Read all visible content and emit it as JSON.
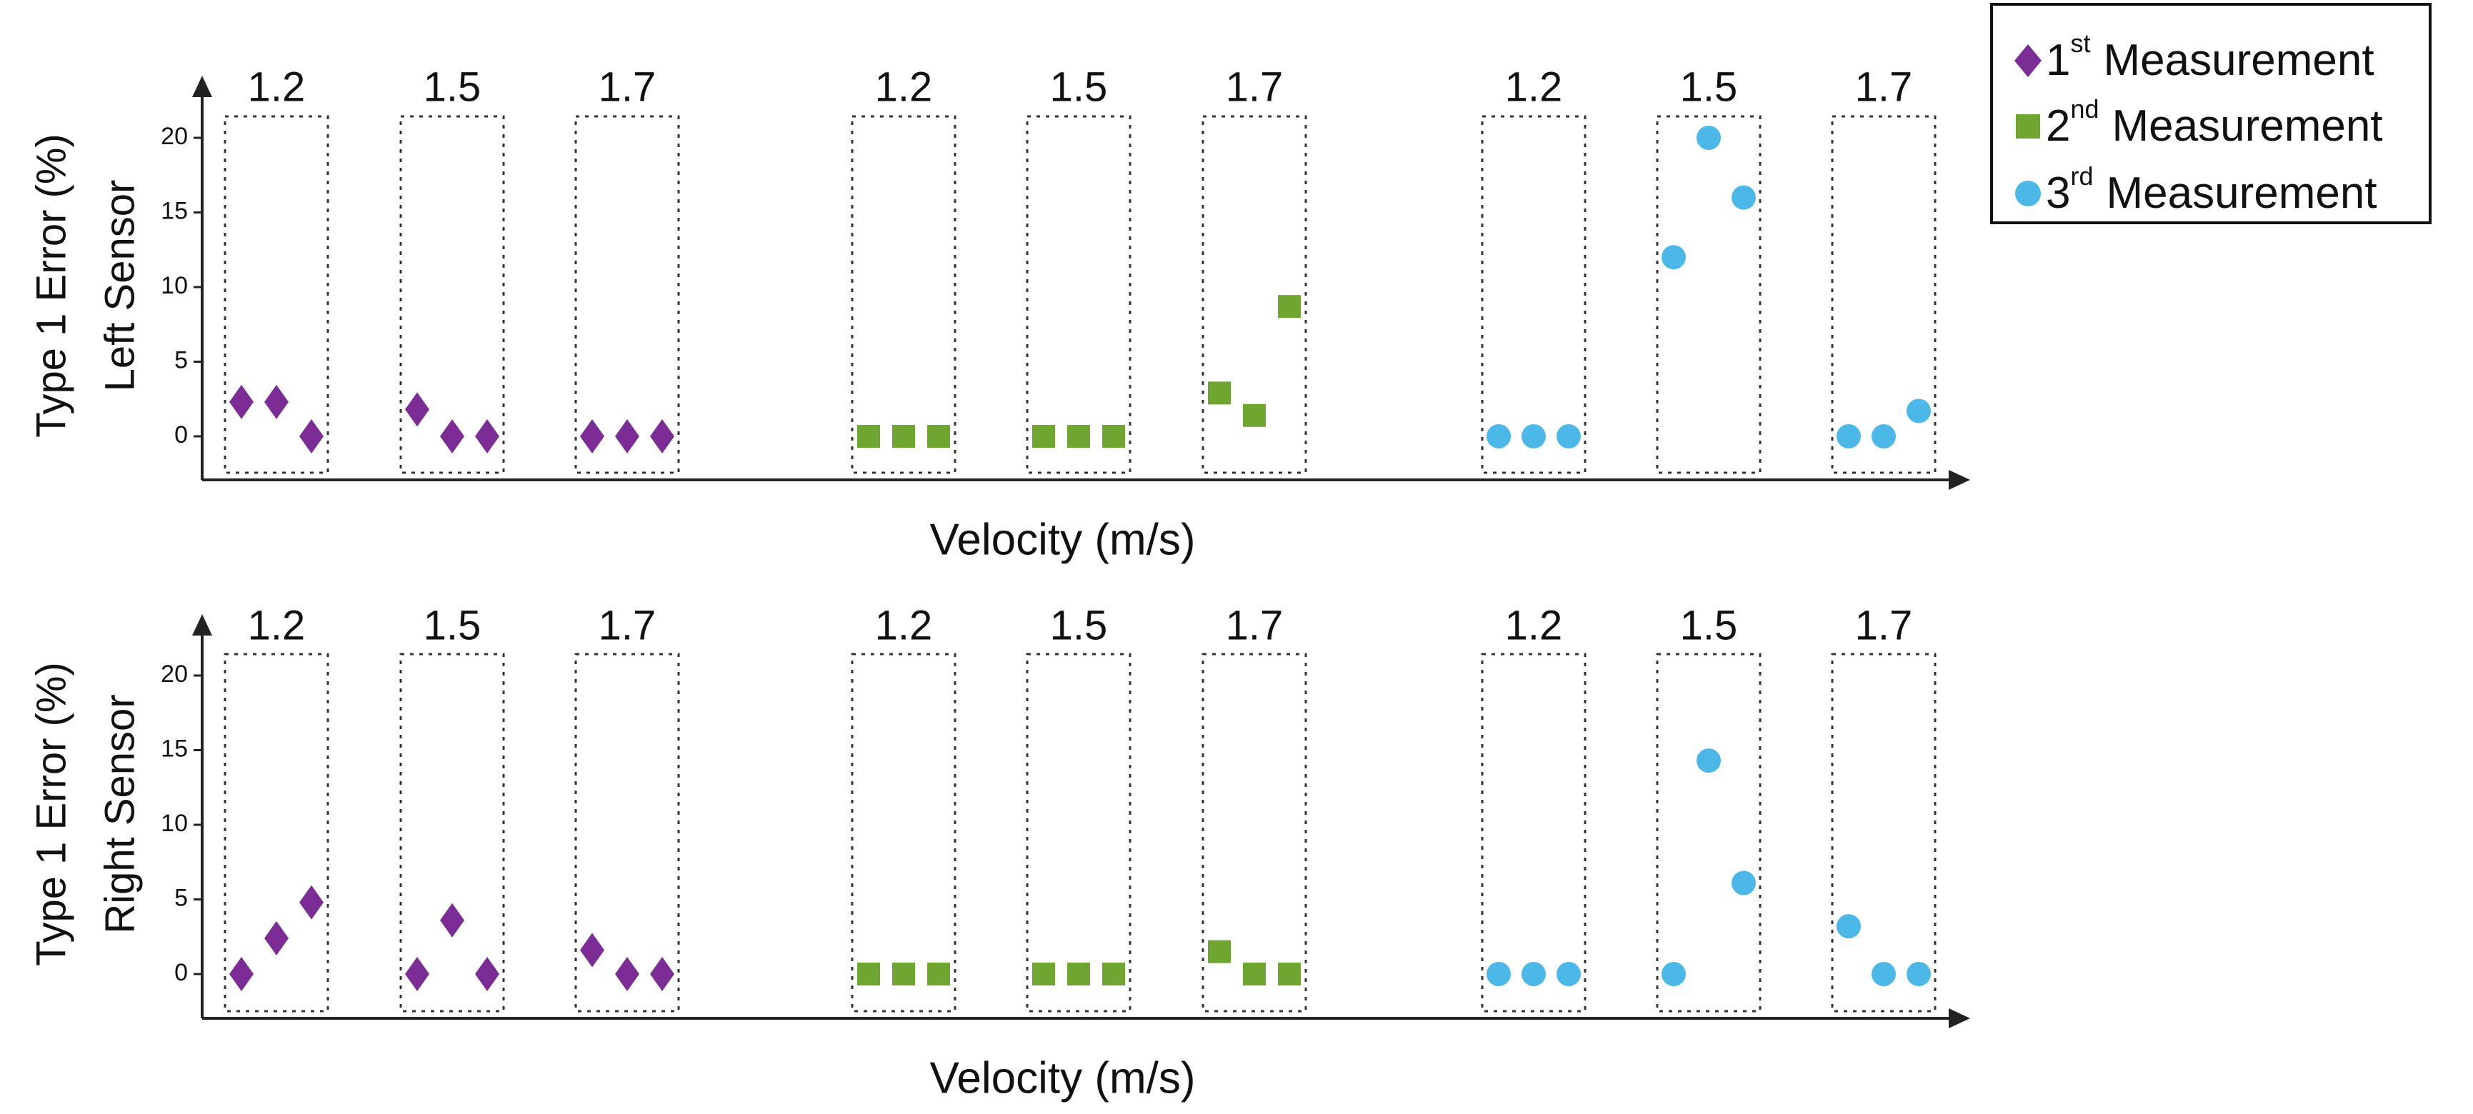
{
  "colors": {
    "first": "#7B2D95",
    "second": "#6FA632",
    "third": "#4BB8E8",
    "axis": "#222222"
  },
  "legend": {
    "items": [
      {
        "num": "1",
        "sup": "st",
        "text": "Measurement",
        "series": "first",
        "icon": "diamond-icon"
      },
      {
        "num": "2",
        "sup": "nd",
        "text": "Measurement",
        "series": "second",
        "icon": "square-icon"
      },
      {
        "num": "3",
        "sup": "rd",
        "text": "Measurement",
        "series": "third",
        "icon": "circle-icon"
      }
    ]
  },
  "chart_data": [
    {
      "type": "scatter",
      "title": "",
      "ylabel_line1": "Type 1 Error (%)",
      "ylabel_line2": "Left Sensor",
      "xlabel": "Velocity (m/s)",
      "ylim": [
        -2.5,
        22
      ],
      "yticks": [
        0,
        5,
        10,
        15,
        20
      ],
      "groups": [
        {
          "series": "first",
          "velocity": "1.2",
          "values": [
            2.3,
            2.3,
            0
          ]
        },
        {
          "series": "first",
          "velocity": "1.5",
          "values": [
            1.8,
            0,
            0
          ]
        },
        {
          "series": "first",
          "velocity": "1.7",
          "values": [
            0,
            0,
            0
          ]
        },
        {
          "series": "second",
          "velocity": "1.2",
          "values": [
            0,
            0,
            0
          ]
        },
        {
          "series": "second",
          "velocity": "1.5",
          "values": [
            0,
            0,
            0
          ]
        },
        {
          "series": "second",
          "velocity": "1.7",
          "values": [
            2.9,
            1.4,
            8.7
          ]
        },
        {
          "series": "third",
          "velocity": "1.2",
          "values": [
            0,
            0,
            0
          ]
        },
        {
          "series": "third",
          "velocity": "1.5",
          "values": [
            12,
            20,
            16
          ]
        },
        {
          "series": "third",
          "velocity": "1.7",
          "values": [
            0,
            0,
            1.7
          ]
        }
      ]
    },
    {
      "type": "scatter",
      "title": "",
      "ylabel_line1": "Type 1 Error (%)",
      "ylabel_line2": "Right Sensor",
      "xlabel": "Velocity (m/s)",
      "ylim": [
        -2.5,
        22
      ],
      "yticks": [
        0,
        5,
        10,
        15,
        20
      ],
      "groups": [
        {
          "series": "first",
          "velocity": "1.2",
          "values": [
            0,
            2.4,
            4.8
          ]
        },
        {
          "series": "first",
          "velocity": "1.5",
          "values": [
            0,
            3.6,
            0
          ]
        },
        {
          "series": "first",
          "velocity": "1.7",
          "values": [
            1.6,
            0,
            0
          ]
        },
        {
          "series": "second",
          "velocity": "1.2",
          "values": [
            0,
            0,
            0
          ]
        },
        {
          "series": "second",
          "velocity": "1.5",
          "values": [
            0,
            0,
            0
          ]
        },
        {
          "series": "second",
          "velocity": "1.7",
          "values": [
            1.5,
            0,
            0
          ]
        },
        {
          "series": "third",
          "velocity": "1.2",
          "values": [
            0,
            0,
            0
          ]
        },
        {
          "series": "third",
          "velocity": "1.5",
          "values": [
            0,
            14.3,
            6.1
          ]
        },
        {
          "series": "third",
          "velocity": "1.7",
          "values": [
            3.2,
            0,
            0
          ]
        }
      ]
    }
  ]
}
